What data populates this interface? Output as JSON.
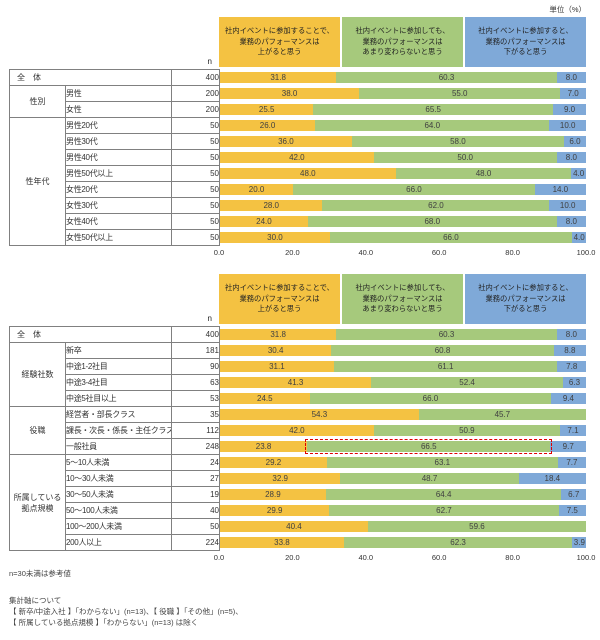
{
  "unit_label": "単位（%）",
  "n_label": "n",
  "colors": {
    "positive": "#F4C242",
    "neutral": "#A6C97C",
    "negative": "#7FA9D8",
    "highlight": "#E00000"
  },
  "chart_data": [
    {
      "type": "bar",
      "orientation": "horizontal",
      "stacked": true,
      "unit": "%",
      "xlim": [
        0,
        100
      ],
      "x_ticks": [
        "0.0",
        "20.0",
        "40.0",
        "60.0",
        "80.0",
        "100.0"
      ],
      "series": [
        {
          "name": "社内イベントに参加することで、業務のパフォーマンスは上がると思う",
          "lines": [
            "社内イベントに参加することで、",
            "業務のパフォーマンスは",
            "上がると思う"
          ],
          "color": "#F4C242"
        },
        {
          "name": "社内イベントに参加しても、業務のパフォーマンスはあまり変わらないと思う",
          "lines": [
            "社内イベントに参加しても、",
            "業務のパフォーマンスは",
            "あまり変わらないと思う"
          ],
          "color": "#A6C97C"
        },
        {
          "name": "社内イベントに参加すると、業務のパフォーマンスは下がると思う",
          "lines": [
            "社内イベントに参加すると、",
            "業務のパフォーマンスは",
            "下がると思う"
          ],
          "color": "#7FA9D8"
        }
      ],
      "groups": [
        {
          "group": "全　体",
          "merged": true,
          "rows": [
            {
              "label": "",
              "n": 400,
              "values": [
                31.8,
                60.3,
                8.0
              ]
            }
          ]
        },
        {
          "group": "性別",
          "rows": [
            {
              "label": "男性",
              "n": 200,
              "values": [
                38.0,
                55.0,
                7.0
              ]
            },
            {
              "label": "女性",
              "n": 200,
              "values": [
                25.5,
                65.5,
                9.0
              ]
            }
          ]
        },
        {
          "group": "性年代",
          "rows": [
            {
              "label": "男性20代",
              "n": 50,
              "values": [
                26.0,
                64.0,
                10.0
              ]
            },
            {
              "label": "男性30代",
              "n": 50,
              "values": [
                36.0,
                58.0,
                6.0
              ]
            },
            {
              "label": "男性40代",
              "n": 50,
              "values": [
                42.0,
                50.0,
                8.0
              ]
            },
            {
              "label": "男性50代以上",
              "n": 50,
              "values": [
                48.0,
                48.0,
                4.0
              ]
            },
            {
              "label": "女性20代",
              "n": 50,
              "values": [
                20.0,
                66.0,
                14.0
              ]
            },
            {
              "label": "女性30代",
              "n": 50,
              "values": [
                28.0,
                62.0,
                10.0
              ]
            },
            {
              "label": "女性40代",
              "n": 50,
              "values": [
                24.0,
                68.0,
                8.0
              ]
            },
            {
              "label": "女性50代以上",
              "n": 50,
              "values": [
                30.0,
                66.0,
                4.0
              ]
            }
          ]
        }
      ]
    },
    {
      "type": "bar",
      "orientation": "horizontal",
      "stacked": true,
      "unit": "%",
      "xlim": [
        0,
        100
      ],
      "x_ticks": [
        "0.0",
        "20.0",
        "40.0",
        "60.0",
        "80.0",
        "100.0"
      ],
      "series": [
        {
          "name": "社内イベントに参加することで、業務のパフォーマンスは上がると思う",
          "lines": [
            "社内イベントに参加することで、",
            "業務のパフォーマンスは",
            "上がると思う"
          ],
          "color": "#F4C242"
        },
        {
          "name": "社内イベントに参加しても、業務のパフォーマンスはあまり変わらないと思う",
          "lines": [
            "社内イベントに参加しても、",
            "業務のパフォーマンスは",
            "あまり変わらないと思う"
          ],
          "color": "#A6C97C"
        },
        {
          "name": "社内イベントに参加すると、業務のパフォーマンスは下がると思う",
          "lines": [
            "社内イベントに参加すると、",
            "業務のパフォーマンスは",
            "下がると思う"
          ],
          "color": "#7FA9D8"
        }
      ],
      "groups": [
        {
          "group": "全　体",
          "merged": true,
          "rows": [
            {
              "label": "",
              "n": 400,
              "values": [
                31.8,
                60.3,
                8.0
              ]
            }
          ]
        },
        {
          "group": "経験社数",
          "rows": [
            {
              "label": "新卒",
              "n": 181,
              "values": [
                30.4,
                60.8,
                8.8
              ]
            },
            {
              "label": "中途1-2社目",
              "n": 90,
              "values": [
                31.1,
                61.1,
                7.8
              ]
            },
            {
              "label": "中途3-4社目",
              "n": 63,
              "values": [
                41.3,
                52.4,
                6.3
              ]
            },
            {
              "label": "中途5社目以上",
              "n": 53,
              "values": [
                24.5,
                66.0,
                9.4
              ]
            }
          ]
        },
        {
          "group": "役職",
          "rows": [
            {
              "label": "経営者・部長クラス",
              "n": 35,
              "values": [
                54.3,
                45.7,
                0
              ]
            },
            {
              "label": "課長・次長・係長・主任クラス",
              "n": 112,
              "values": [
                42.0,
                50.9,
                7.1
              ]
            },
            {
              "label": "一般社員",
              "n": 248,
              "values": [
                23.8,
                66.5,
                9.7
              ],
              "highlight": 1
            }
          ]
        },
        {
          "group": "所属している拠点規模",
          "rows": [
            {
              "label": "5～10人未満",
              "n": 24,
              "values": [
                29.2,
                63.1,
                7.7
              ]
            },
            {
              "label": "10～30人未満",
              "n": 27,
              "values": [
                32.9,
                48.7,
                18.4
              ]
            },
            {
              "label": "30～50人未満",
              "n": 19,
              "values": [
                28.9,
                64.4,
                6.7
              ]
            },
            {
              "label": "50～100人未満",
              "n": 40,
              "values": [
                29.9,
                62.7,
                7.5
              ]
            },
            {
              "label": "100～200人未満",
              "n": 50,
              "values": [
                40.4,
                59.6,
                0
              ]
            },
            {
              "label": "200人以上",
              "n": 224,
              "values": [
                33.8,
                62.3,
                3.9
              ]
            }
          ]
        }
      ]
    }
  ],
  "footnotes": {
    "reference": "n=30未満は参考値",
    "title": "集計軸について",
    "line1": "【 新卒/中途入社 】「わからない」(n=13)、【 役職 】「その他」(n=5)、",
    "line2": "【 所属している拠点規模 】「わからない」(n=13) は除く"
  }
}
